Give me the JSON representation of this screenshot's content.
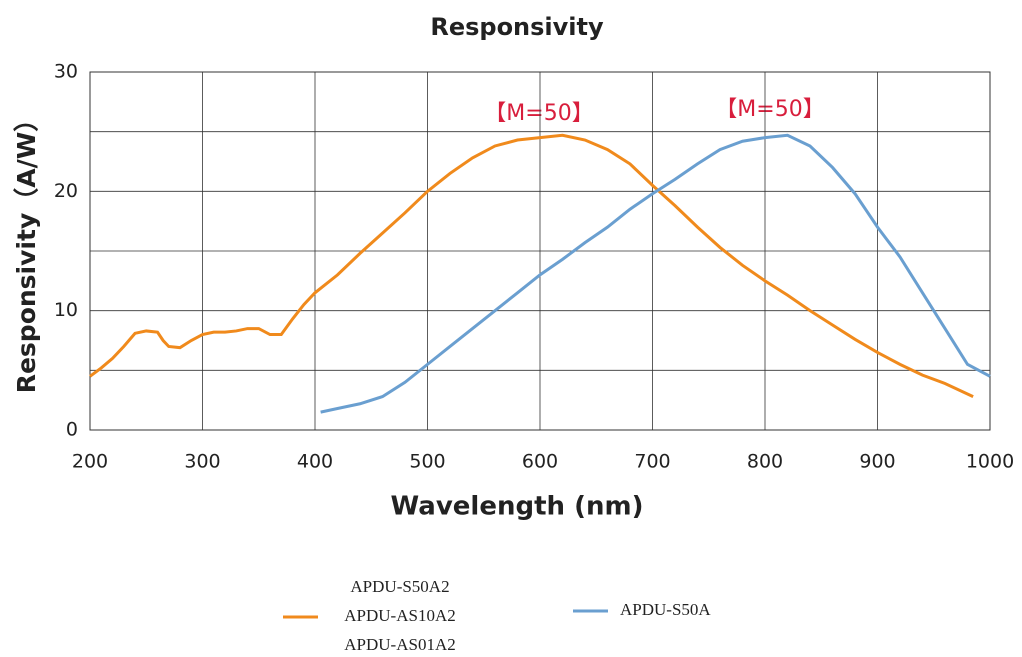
{
  "chart_data": {
    "type": "line",
    "title": "Responsivity",
    "x_label": "Wavelength (nm)",
    "y_label": "Responsivity（A/W）",
    "xlim": [
      200,
      1000
    ],
    "xticks": [
      200,
      300,
      400,
      500,
      600,
      700,
      800,
      900,
      1000
    ],
    "ylim": [
      0,
      30
    ],
    "yticks": [
      0,
      10,
      20,
      30
    ],
    "y_minor_grid": [
      5,
      15,
      25
    ],
    "grid": true,
    "annotations": [
      "【M=50】",
      "【M=50】"
    ],
    "series": [
      {
        "name": [
          "APDU-S50A2",
          "APDU-AS10A2",
          "APDU-AS01A2"
        ],
        "color": "#f08a1c",
        "x": [
          200,
          210,
          220,
          230,
          240,
          250,
          260,
          265,
          270,
          280,
          290,
          300,
          310,
          320,
          330,
          340,
          350,
          360,
          370,
          380,
          390,
          400,
          420,
          440,
          460,
          480,
          500,
          520,
          540,
          560,
          580,
          600,
          620,
          640,
          660,
          680,
          700,
          720,
          740,
          760,
          780,
          800,
          820,
          840,
          860,
          880,
          900,
          920,
          940,
          960,
          985
        ],
        "values": [
          4.5,
          5.2,
          6.0,
          7.0,
          8.1,
          8.3,
          8.2,
          7.5,
          7.0,
          6.9,
          7.5,
          8.0,
          8.2,
          8.2,
          8.3,
          8.5,
          8.5,
          8.0,
          8.0,
          9.3,
          10.5,
          11.5,
          13.0,
          14.8,
          16.5,
          18.2,
          20.0,
          21.5,
          22.8,
          23.8,
          24.3,
          24.5,
          24.7,
          24.3,
          23.5,
          22.3,
          20.5,
          18.8,
          17.0,
          15.3,
          13.8,
          12.5,
          11.3,
          10.0,
          8.8,
          7.6,
          6.5,
          5.5,
          4.6,
          3.9,
          2.8
        ]
      },
      {
        "name": "APDU-S50A",
        "color": "#6a9fd0",
        "x": [
          405,
          420,
          440,
          460,
          480,
          500,
          520,
          540,
          560,
          580,
          600,
          620,
          640,
          660,
          680,
          700,
          720,
          740,
          760,
          780,
          800,
          820,
          840,
          860,
          880,
          900,
          920,
          940,
          960,
          980,
          1000
        ],
        "values": [
          1.5,
          1.8,
          2.2,
          2.8,
          4.0,
          5.5,
          7.0,
          8.5,
          10.0,
          11.5,
          13.0,
          14.3,
          15.7,
          17.0,
          18.5,
          19.8,
          21.0,
          22.3,
          23.5,
          24.2,
          24.5,
          24.7,
          23.8,
          22.0,
          19.8,
          17.0,
          14.5,
          11.5,
          8.5,
          5.5,
          4.5
        ]
      }
    ]
  }
}
